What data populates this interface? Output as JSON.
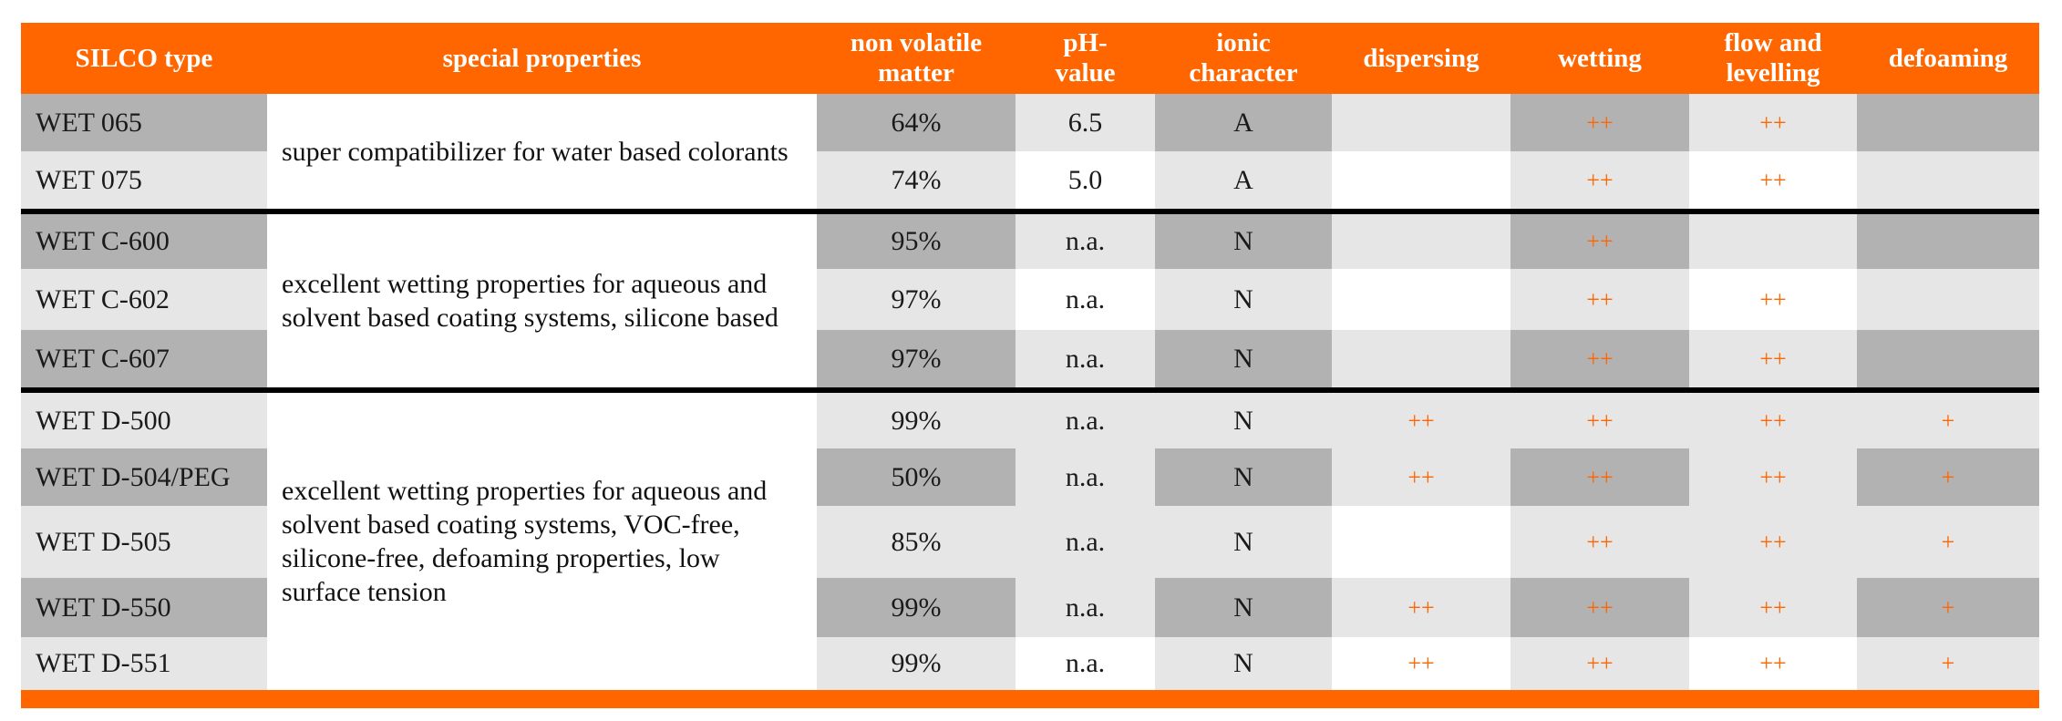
{
  "header": {
    "columns": [
      "SILCO type",
      "special properties",
      "non volatile\nmatter",
      "pH-\nvalue",
      "ionic\ncharacter",
      "dispersing",
      "wetting",
      "flow and\nlevelling",
      "defoaming"
    ]
  },
  "groups": [
    {
      "properties": "super compatibilizer for water based colorants",
      "rows": [
        {
          "type": "WET 065",
          "nvm": "64%",
          "ph": "6.5",
          "ionic": "A",
          "dispersing": "",
          "wetting": "++",
          "flow": "++",
          "defoaming": ""
        },
        {
          "type": "WET 075",
          "nvm": "74%",
          "ph": "5.0",
          "ionic": "A",
          "dispersing": "",
          "wetting": "++",
          "flow": "++",
          "defoaming": ""
        }
      ]
    },
    {
      "properties": "excellent wetting properties for aqueous and solvent based coating systems, silicone based",
      "rows": [
        {
          "type": "WET C-600",
          "nvm": "95%",
          "ph": "n.a.",
          "ionic": "N",
          "dispersing": "",
          "wetting": "++",
          "flow": "",
          "defoaming": ""
        },
        {
          "type": "WET C-602",
          "nvm": "97%",
          "ph": "n.a.",
          "ionic": "N",
          "dispersing": "",
          "wetting": "++",
          "flow": "++",
          "defoaming": ""
        },
        {
          "type": "WET C-607",
          "nvm": "97%",
          "ph": "n.a.",
          "ionic": "N",
          "dispersing": "",
          "wetting": "++",
          "flow": "++",
          "defoaming": ""
        }
      ]
    },
    {
      "properties": "excellent wetting properties for aqueous and solvent based coating systems, VOC-free, silicone-free, defoaming properties, low surface tension",
      "rows": [
        {
          "type": "WET D-500",
          "nvm": "99%",
          "ph": "n.a.",
          "ionic": "N",
          "dispersing": "++",
          "wetting": "++",
          "flow": "++",
          "defoaming": "+"
        },
        {
          "type": "WET D-504/PEG",
          "nvm": "50%",
          "ph": "n.a.",
          "ionic": "N",
          "dispersing": "++",
          "wetting": "++",
          "flow": "++",
          "defoaming": "+"
        },
        {
          "type": "WET D-505",
          "nvm": "85%",
          "ph": "n.a.",
          "ionic": "N",
          "dispersing": "",
          "wetting": "++",
          "flow": "++",
          "defoaming": "+"
        },
        {
          "type": "WET D-550",
          "nvm": "99%",
          "ph": "n.a.",
          "ionic": "N",
          "dispersing": "++",
          "wetting": "++",
          "flow": "++",
          "defoaming": "+"
        },
        {
          "type": "WET D-551",
          "nvm": "99%",
          "ph": "n.a.",
          "ionic": "N",
          "dispersing": "++",
          "wetting": "++",
          "flow": "++",
          "defoaming": "+"
        }
      ]
    }
  ],
  "colors": {
    "accent": "#ff6600",
    "dark_cell": "#b2b2b2",
    "light_cell": "#e6e6e6",
    "white_cell": "#ffffff"
  }
}
